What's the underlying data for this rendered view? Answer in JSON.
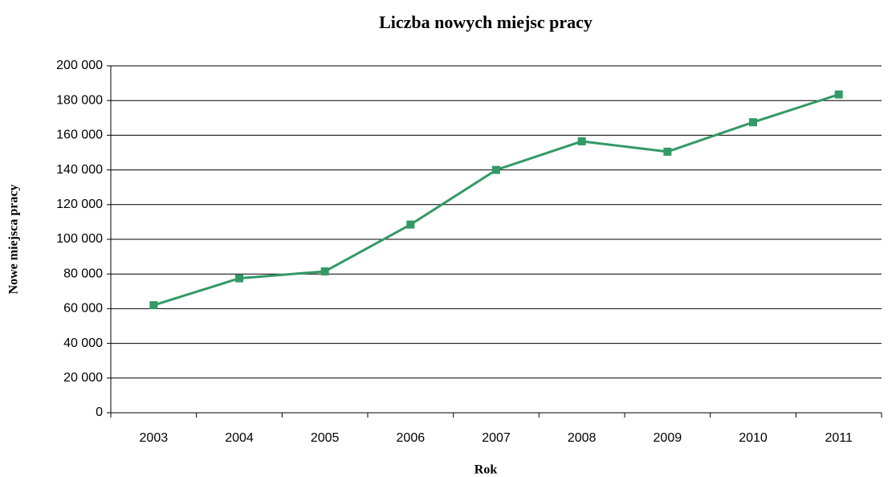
{
  "chart_data": {
    "type": "line",
    "title": "Liczba nowych miejsc pracy",
    "x_label": "Rok",
    "y_label": "Nowe miejsca pracy",
    "categories": [
      "2003",
      "2004",
      "2005",
      "2006",
      "2007",
      "2008",
      "2009",
      "2010",
      "2011"
    ],
    "series": [
      {
        "name": "Nowe miejsca pracy",
        "color": "#339966",
        "values": [
          62000,
          77500,
          81500,
          108500,
          140000,
          156500,
          150500,
          167500,
          183500
        ]
      }
    ],
    "ylim": [
      0,
      200000
    ],
    "yticks": [
      {
        "value": 0,
        "label": "0"
      },
      {
        "value": 20000,
        "label": "20 000"
      },
      {
        "value": 40000,
        "label": "40 000"
      },
      {
        "value": 60000,
        "label": "60 000"
      },
      {
        "value": 80000,
        "label": "80 000"
      },
      {
        "value": 100000,
        "label": "100 000"
      },
      {
        "value": 120000,
        "label": "120 000"
      },
      {
        "value": 140000,
        "label": "140 000"
      },
      {
        "value": 160000,
        "label": "160 000"
      },
      {
        "value": 180000,
        "label": "180 000"
      },
      {
        "value": 200000,
        "label": "200 000"
      }
    ],
    "grid": true
  }
}
